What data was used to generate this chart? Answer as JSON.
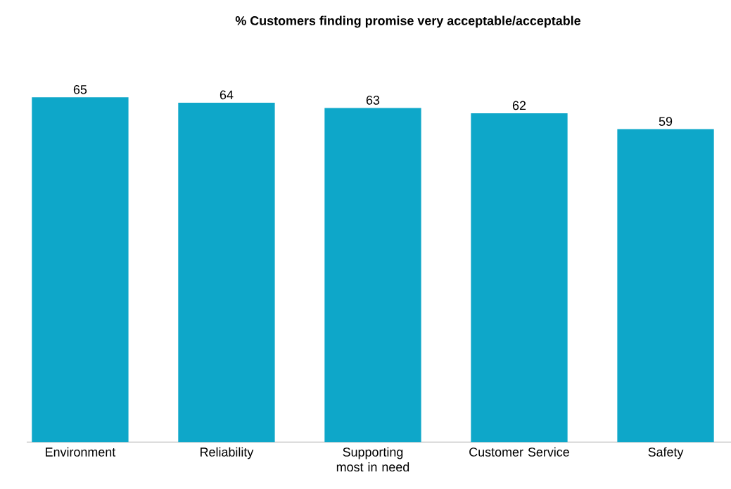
{
  "chart_data": {
    "type": "bar",
    "title": "% Customers finding promise very acceptable/acceptable",
    "categories": [
      "Environment",
      "Reliability",
      "Supporting most in need",
      "Customer Service",
      "Safety"
    ],
    "values": [
      65,
      64,
      63,
      62,
      59
    ],
    "color": "#0ea7c9",
    "data_labels": true
  }
}
